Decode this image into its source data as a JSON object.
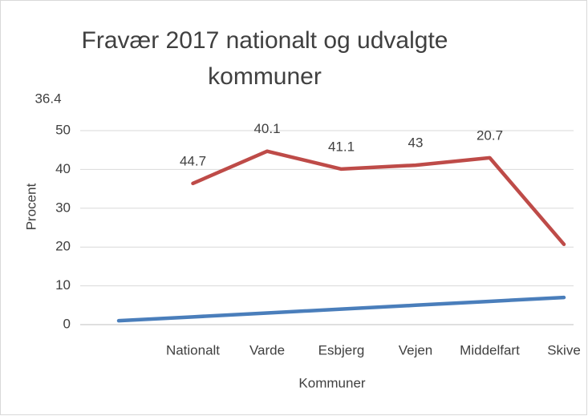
{
  "chart_data": {
    "type": "line",
    "title": "Fravær 2017 nationalt og udvalgte kommuner",
    "x_label": "Kommuner",
    "y_label": "Procent",
    "categories": [
      null,
      "Nationalt",
      "Varde",
      "Esbjerg",
      "Vejen",
      "Middelfart",
      "Skive"
    ],
    "series": [
      {
        "color": "#4a7ebb",
        "values": [
          1,
          2,
          3,
          4,
          5,
          6,
          7
        ]
      },
      {
        "color": "#be4b48",
        "values": [
          null,
          36.4,
          44.7,
          40.1,
          41.1,
          43,
          20.7
        ]
      }
    ],
    "data_labels_series": 1,
    "ylim": [
      0,
      50
    ],
    "yticks": [
      0,
      10,
      20,
      30,
      40,
      50
    ],
    "grid": true
  }
}
